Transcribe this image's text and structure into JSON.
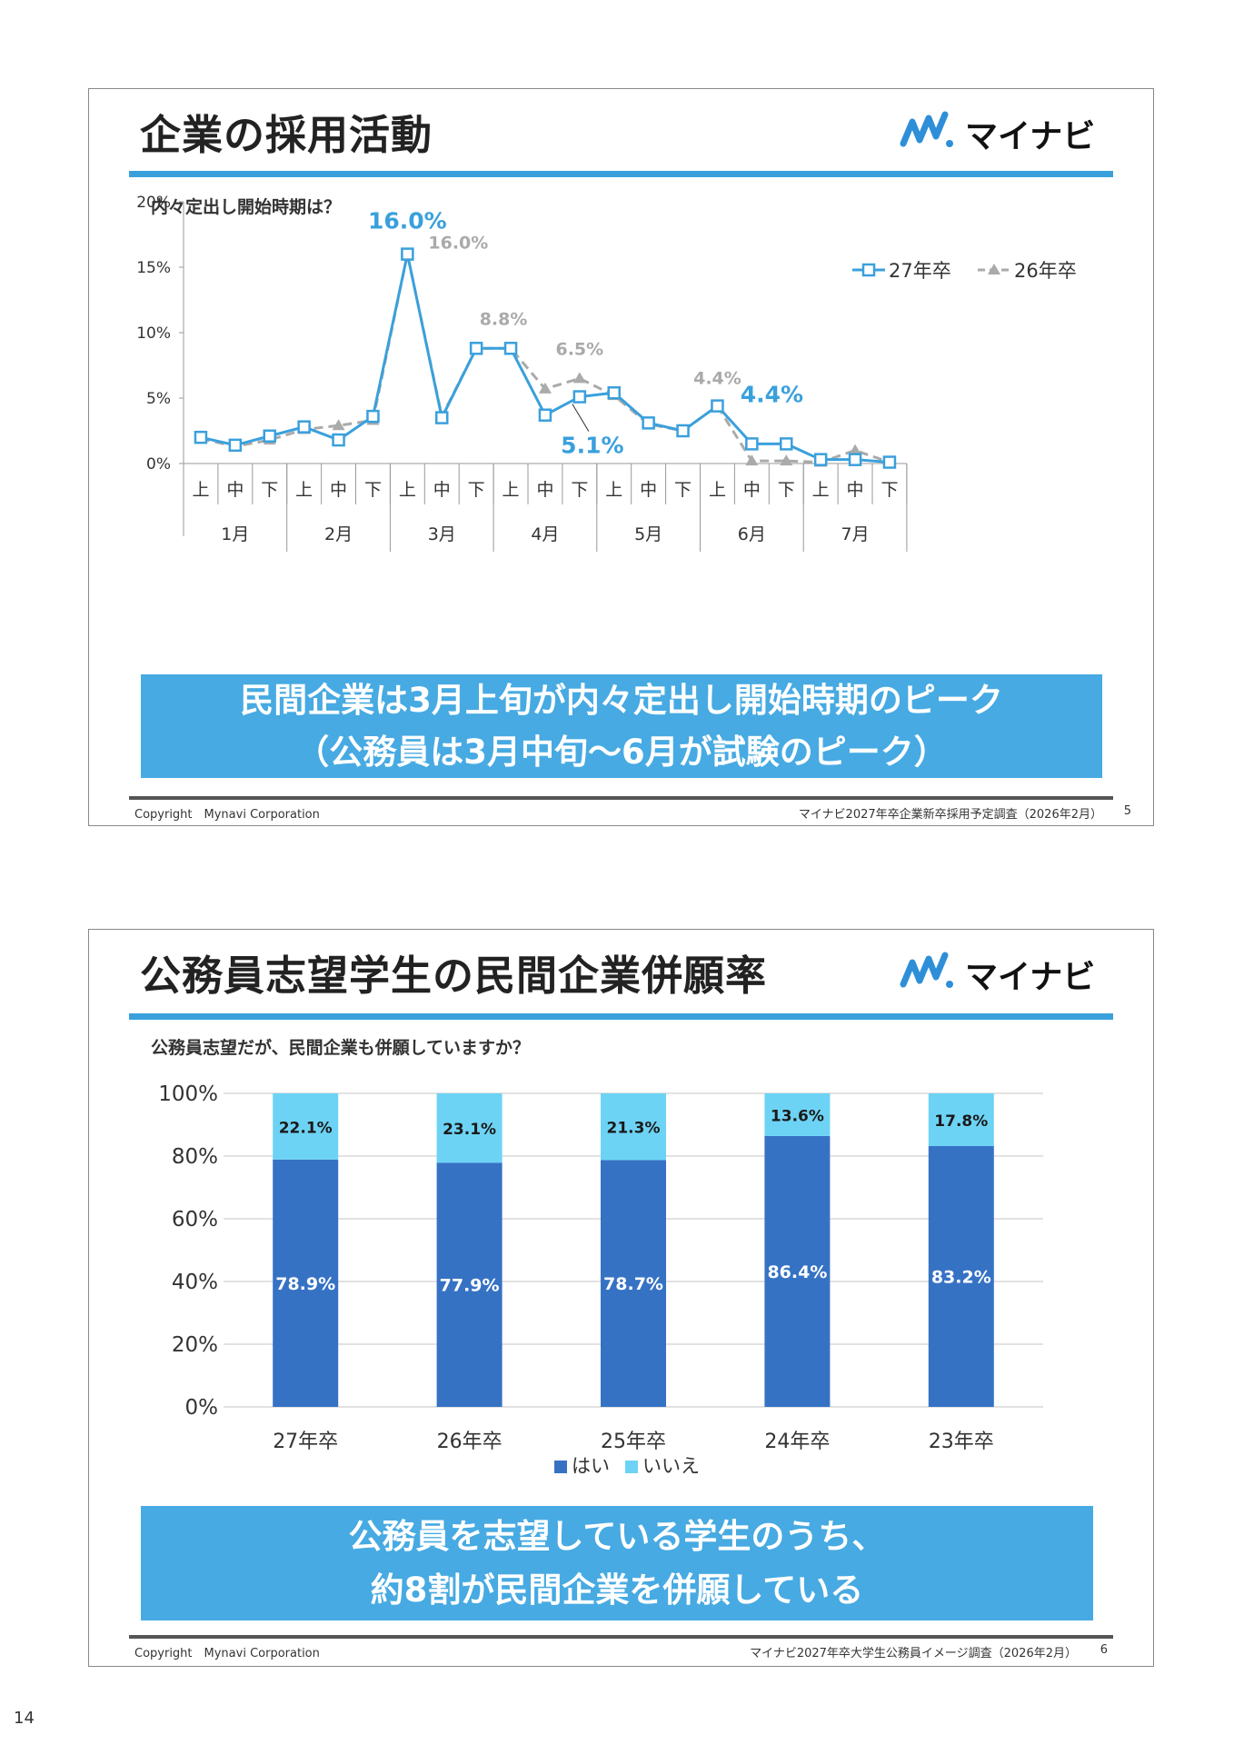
{
  "slide1": {
    "title": "企業の採用活動",
    "logo_text": "マイナビ",
    "question": "内々定出し開始時期は？",
    "banner_line1": "民間企業は3月上旬が内々定出し開始時期のピーク",
    "banner_line2": "（公務員は3月中旬～6月が試験のピーク）",
    "copyright": "Copyright　Mynavi Corporation",
    "source": "マイナビ2027年卒企業新卒採用予定調査（2026年2月）",
    "page": "5",
    "chart_data": {
      "type": "line",
      "y_ticks": [
        "20%",
        "15%",
        "10%",
        "5%",
        "0%"
      ],
      "ylim": [
        0,
        20
      ],
      "x_sub": [
        "上",
        "中",
        "下",
        "上",
        "中",
        "下",
        "上",
        "中",
        "下",
        "上",
        "中",
        "下",
        "上",
        "中",
        "下",
        "上",
        "中",
        "下",
        "上",
        "中",
        "下"
      ],
      "x_groups": [
        "1月",
        "2月",
        "3月",
        "4月",
        "5月",
        "6月",
        "7月"
      ],
      "legend_position": "top-right",
      "series": [
        {
          "name": "27年卒",
          "color": "#3aa0dc",
          "values": [
            2.0,
            1.4,
            2.1,
            2.8,
            1.8,
            3.6,
            16.0,
            3.5,
            8.8,
            8.8,
            3.7,
            5.1,
            5.4,
            3.1,
            2.5,
            4.4,
            1.5,
            1.5,
            0.3,
            0.3,
            0.1
          ]
        },
        {
          "name": "26年卒",
          "color": "#aaaaaa",
          "values": [
            1.9,
            1.3,
            1.8,
            2.6,
            2.9,
            3.3,
            16.0,
            3.6,
            8.8,
            8.8,
            5.7,
            6.5,
            5.2,
            3.0,
            2.5,
            4.4,
            0.2,
            0.2,
            0.1,
            1.0,
            0.1
          ]
        }
      ],
      "labels_27": [
        "16.0%",
        "5.1%",
        "4.4%"
      ],
      "labels_26": [
        "16.0%",
        "8.8%",
        "6.5%",
        "4.4%"
      ]
    }
  },
  "slide2": {
    "title": "公務員志望学生の民間企業併願率",
    "logo_text": "マイナビ",
    "question": "公務員志望だが、民間企業も併願していますか？",
    "banner_line1": "公務員を志望している学生のうち、",
    "banner_line2": "約8割が民間企業を併願している",
    "copyright": "Copyright　Mynavi Corporation",
    "source": "マイナビ2027年卒大学生公務員イメージ調査（2026年2月）",
    "page": "6",
    "chart_data": {
      "type": "bar",
      "stacked": true,
      "categories": [
        "27年卒",
        "26年卒",
        "25年卒",
        "24年卒",
        "23年卒"
      ],
      "y_ticks": [
        "100%",
        "80%",
        "60%",
        "40%",
        "20%",
        "0%"
      ],
      "ylim": [
        0,
        100
      ],
      "legend_position": "bottom",
      "series": [
        {
          "name": "はい",
          "color": "#3672c4",
          "values": [
            78.9,
            77.9,
            78.7,
            86.4,
            83.2
          ],
          "labels": [
            "78.9%",
            "77.9%",
            "78.7%",
            "86.4%",
            "83.2%"
          ]
        },
        {
          "name": "いいえ",
          "color": "#6dd3f5",
          "values": [
            22.1,
            23.1,
            21.3,
            13.6,
            17.8
          ],
          "labels": [
            "22.1%",
            "23.1%",
            "21.3%",
            "13.6%",
            "17.8%"
          ]
        }
      ]
    }
  },
  "doc_page": "14"
}
